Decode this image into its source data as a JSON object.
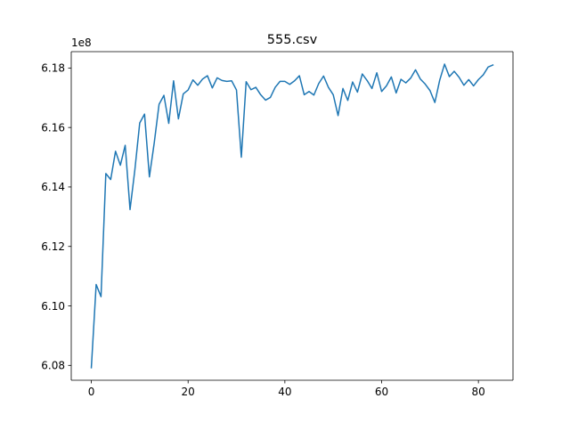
{
  "chart_data": {
    "type": "line",
    "title": "555.csv",
    "xlabel": "",
    "ylabel": "",
    "y_offset_label": "1e8",
    "xlim": [
      -4.15,
      87.15
    ],
    "ylim": [
      6.075,
      6.1855
    ],
    "x_ticks": [
      0,
      20,
      40,
      60,
      80
    ],
    "x_tick_labels": [
      "0",
      "20",
      "40",
      "60",
      "80"
    ],
    "y_ticks": [
      6.08,
      6.1,
      6.12,
      6.14,
      6.16,
      6.18
    ],
    "y_tick_labels": [
      "6.08",
      "6.10",
      "6.12",
      "6.14",
      "6.16",
      "6.18"
    ],
    "grid": false,
    "legend": "none",
    "series": [
      {
        "color": "#1f77b4",
        "x": [
          0,
          1,
          2,
          3,
          4,
          5,
          6,
          7,
          8,
          9,
          10,
          11,
          12,
          13,
          14,
          15,
          16,
          17,
          18,
          19,
          20,
          21,
          22,
          23,
          24,
          25,
          26,
          27,
          28,
          29,
          30,
          31,
          32,
          33,
          34,
          35,
          36,
          37,
          38,
          39,
          40,
          41,
          42,
          43,
          44,
          45,
          46,
          47,
          48,
          49,
          50,
          51,
          52,
          53,
          54,
          55,
          56,
          57,
          58,
          59,
          60,
          61,
          62,
          63,
          64,
          65,
          66,
          67,
          68,
          69,
          70,
          71,
          72,
          73,
          74,
          75,
          76,
          77,
          78,
          79,
          80,
          81,
          82,
          83
        ],
        "values": [
          6.0792,
          6.1072,
          6.1031,
          6.1445,
          6.1425,
          6.152,
          6.1473,
          6.154,
          6.1324,
          6.1458,
          6.1615,
          6.1645,
          6.1434,
          6.1548,
          6.1678,
          6.1708,
          6.1614,
          6.1757,
          6.1629,
          6.1713,
          6.1726,
          6.176,
          6.1742,
          6.1763,
          6.1774,
          6.1733,
          6.1767,
          6.1758,
          6.1755,
          6.1757,
          6.1726,
          6.15,
          6.1754,
          6.1727,
          6.1735,
          6.171,
          6.1692,
          6.1701,
          6.1735,
          6.1755,
          6.1755,
          6.1745,
          6.1757,
          6.1774,
          6.171,
          6.1721,
          6.1709,
          6.1748,
          6.1773,
          6.1735,
          6.171,
          6.164,
          6.1731,
          6.1691,
          6.1753,
          6.1719,
          6.178,
          6.1758,
          6.1731,
          6.1784,
          6.1721,
          6.174,
          6.177,
          6.1716,
          6.1762,
          6.175,
          6.1766,
          6.1794,
          6.1763,
          6.1746,
          6.1724,
          6.1684,
          6.1759,
          6.1813,
          6.1771,
          6.1789,
          6.1769,
          6.1742,
          6.1761,
          6.174,
          6.1761,
          6.1777,
          6.1803,
          6.181
        ]
      }
    ]
  }
}
